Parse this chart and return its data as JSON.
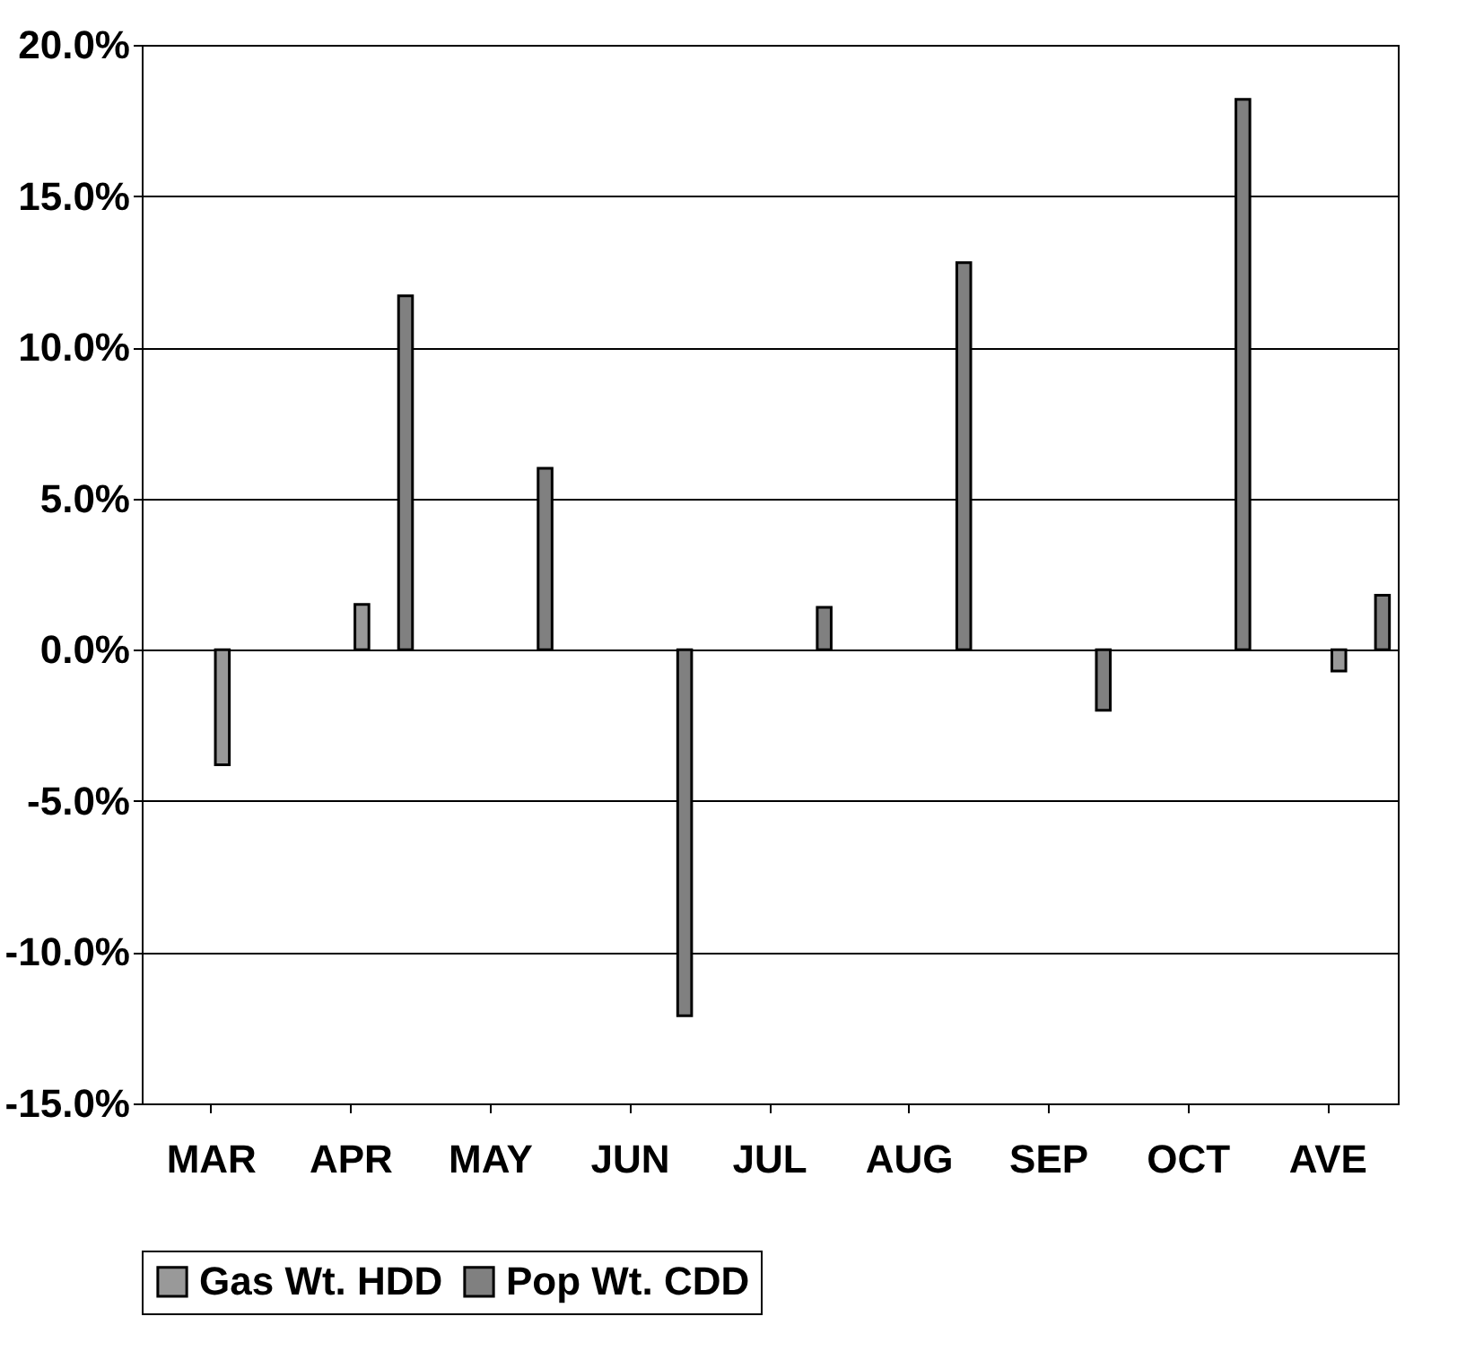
{
  "chart_data": {
    "type": "bar",
    "categories": [
      "MAR",
      "APR",
      "MAY",
      "JUN",
      "JUL",
      "AUG",
      "SEP",
      "OCT",
      "AVE"
    ],
    "series": [
      {
        "name": "Gas Wt. HDD",
        "color": "#999999",
        "values": [
          -3.8,
          1.5,
          null,
          null,
          null,
          null,
          null,
          null,
          -0.7
        ]
      },
      {
        "name": "Pop Wt. CDD",
        "color": "#808080",
        "values": [
          null,
          11.7,
          6.0,
          -12.1,
          1.4,
          12.8,
          -2.0,
          18.2,
          1.8
        ]
      }
    ],
    "ylim": [
      -15,
      20
    ],
    "yticks": [
      {
        "value": -15,
        "label": "-15.0%"
      },
      {
        "value": -10,
        "label": "-10.0%"
      },
      {
        "value": -5,
        "label": "-5.0%"
      },
      {
        "value": 0,
        "label": "0.0%"
      },
      {
        "value": 5,
        "label": "5.0%"
      },
      {
        "value": 10,
        "label": "10.0%"
      },
      {
        "value": 15,
        "label": "15.0%"
      },
      {
        "value": 20,
        "label": "20.0%"
      }
    ],
    "grid": "y",
    "legend": "bottom"
  }
}
